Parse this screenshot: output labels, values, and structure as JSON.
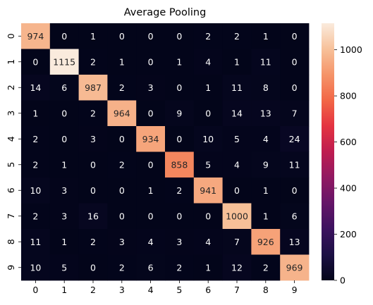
{
  "chart_data": {
    "type": "heatmap",
    "title": "Average Pooling",
    "x_tick_labels": [
      "0",
      "1",
      "2",
      "3",
      "4",
      "5",
      "6",
      "7",
      "8",
      "9"
    ],
    "y_tick_labels": [
      "0",
      "1",
      "2",
      "3",
      "4",
      "5",
      "6",
      "7",
      "8",
      "9"
    ],
    "values": [
      [
        974,
        0,
        1,
        0,
        0,
        0,
        2,
        2,
        1,
        0
      ],
      [
        0,
        1115,
        2,
        1,
        0,
        1,
        4,
        1,
        11,
        0
      ],
      [
        14,
        6,
        987,
        2,
        3,
        0,
        1,
        11,
        8,
        0
      ],
      [
        1,
        0,
        2,
        964,
        0,
        9,
        0,
        14,
        13,
        7
      ],
      [
        2,
        0,
        3,
        0,
        934,
        0,
        10,
        5,
        4,
        24
      ],
      [
        2,
        1,
        0,
        2,
        0,
        858,
        5,
        4,
        9,
        11
      ],
      [
        10,
        3,
        0,
        0,
        1,
        2,
        941,
        0,
        1,
        0
      ],
      [
        2,
        3,
        16,
        0,
        0,
        0,
        0,
        1000,
        1,
        6
      ],
      [
        11,
        1,
        2,
        3,
        4,
        3,
        4,
        7,
        926,
        13
      ],
      [
        10,
        5,
        0,
        2,
        6,
        2,
        1,
        12,
        2,
        969
      ]
    ],
    "colorbar": {
      "vmin": 0,
      "vmax": 1115,
      "ticks": [
        0,
        200,
        400,
        600,
        800,
        1000
      ],
      "colormap": "rocket"
    },
    "grid": false,
    "annotations": true
  }
}
